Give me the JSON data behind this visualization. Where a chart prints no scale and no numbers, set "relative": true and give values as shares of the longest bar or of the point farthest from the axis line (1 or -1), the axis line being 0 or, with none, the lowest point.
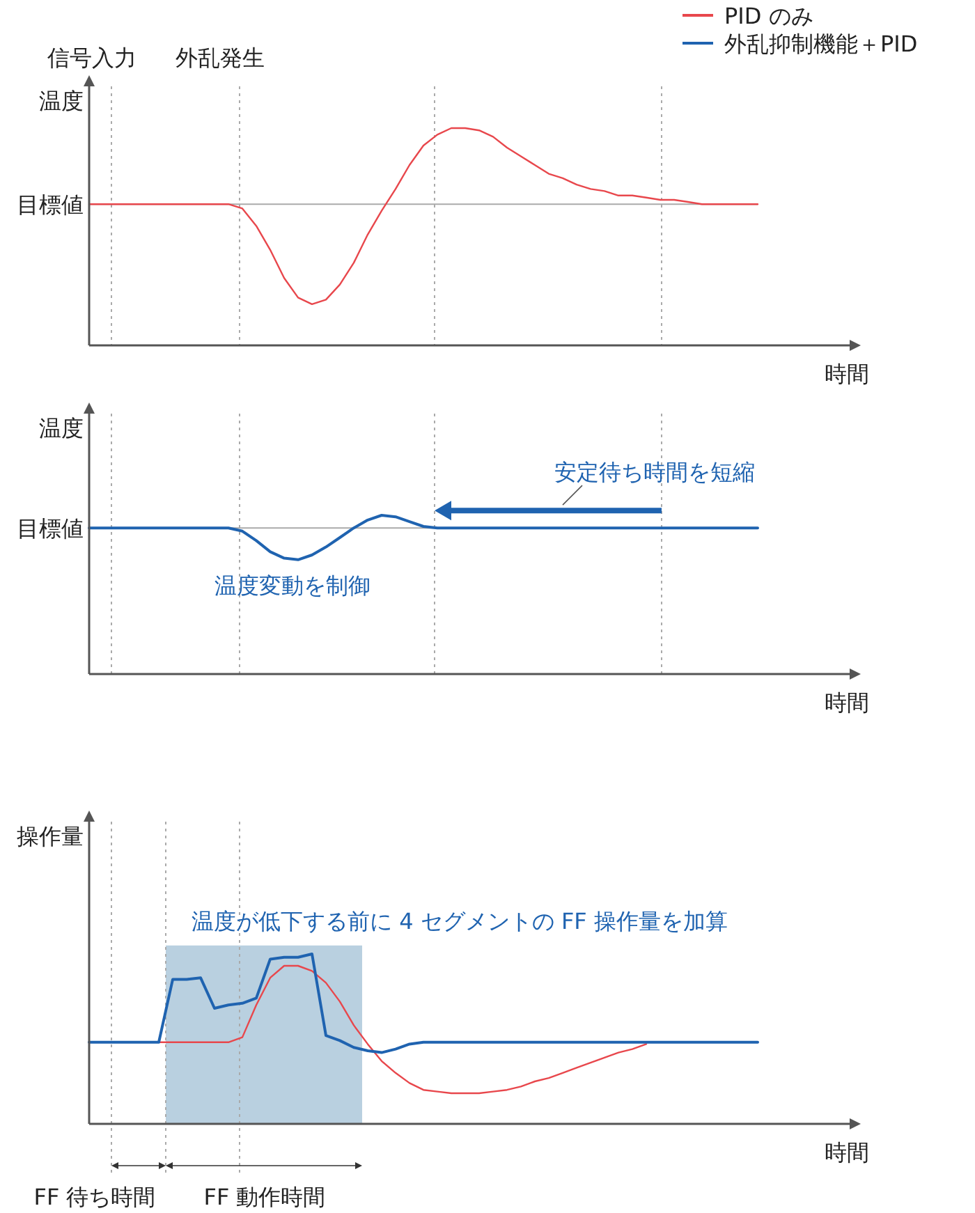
{
  "chart_data": [
    {
      "type": "line",
      "ylabel": "温度",
      "xlabel": "時間",
      "relative": true,
      "categories": [
        null,
        null,
        null,
        null,
        null,
        null,
        null,
        null,
        null,
        null,
        null,
        null,
        null,
        null,
        null,
        null,
        null,
        null,
        null,
        null,
        null,
        null,
        null,
        null,
        null,
        null,
        null,
        null,
        null,
        null,
        null,
        null,
        null,
        null,
        null,
        null,
        null,
        null,
        null,
        null,
        null,
        null,
        null,
        null,
        null,
        null,
        null,
        null,
        null
      ],
      "annotations": [
        "信号入力",
        "外乱発生"
      ],
      "series": [
        {
          "color": "#e8474c",
          "values": [
            0.65,
            0.65,
            0.65,
            0.65,
            0.65,
            0.65,
            0.65,
            0.65,
            0.65,
            0.65,
            0.65,
            0.63,
            0.55,
            0.44,
            0.31,
            0.22,
            0.19,
            0.21,
            0.28,
            0.38,
            0.51,
            0.62,
            0.72,
            0.83,
            0.92,
            0.97,
            1,
            1,
            0.99,
            0.96,
            0.91,
            0.87,
            0.83,
            0.79,
            0.77,
            0.74,
            0.72,
            0.71,
            0.69,
            0.69,
            0.68,
            0.67,
            0.67,
            0.66,
            0.65,
            0.65,
            0.65,
            0.65,
            0.65
          ]
        }
      ],
      "ref_lines": [
        {
          "axis": "y",
          "value": 0.65,
          "label": "目標値",
          "color": "#aaaaaa",
          "line_style": "solid"
        }
      ]
    },
    {
      "type": "line",
      "ylabel": "温度",
      "xlabel": "時間",
      "relative": true,
      "categories": [
        null,
        null,
        null,
        null,
        null,
        null,
        null,
        null,
        null,
        null,
        null,
        null,
        null,
        null,
        null,
        null,
        null,
        null,
        null,
        null,
        null,
        null,
        null,
        null,
        null,
        null,
        null,
        null,
        null,
        null,
        null,
        null,
        null,
        null,
        null,
        null,
        null,
        null,
        null,
        null,
        null,
        null,
        null,
        null,
        null,
        null,
        null,
        null,
        null
      ],
      "annotations": [
        "安定待ち時間を短縮",
        "温度変動を制御"
      ],
      "series": [
        {
          "color": "#1f63b0",
          "values": [
            0.92,
            0.92,
            0.92,
            0.92,
            0.92,
            0.92,
            0.92,
            0.92,
            0.92,
            0.92,
            0.92,
            0.9,
            0.84,
            0.77,
            0.73,
            0.72,
            0.75,
            0.8,
            0.86,
            0.92,
            0.97,
            1,
            0.99,
            0.96,
            0.93,
            0.92,
            0.92,
            0.92,
            0.92,
            0.92,
            0.92,
            0.92,
            0.92,
            0.92,
            0.92,
            0.92,
            0.92,
            0.92,
            0.92,
            0.92,
            0.92,
            0.92,
            0.92,
            0.92,
            0.92,
            0.92,
            0.92,
            0.92,
            0.92
          ]
        }
      ],
      "ref_lines": [
        {
          "axis": "y",
          "value": 0.92,
          "label": "目標値",
          "color": "#aaaaaa",
          "line_style": "solid"
        }
      ]
    },
    {
      "type": "line",
      "ylabel": "操作量",
      "xlabel": "時間",
      "relative": true,
      "legend": "top right",
      "categories": [
        null,
        null,
        null,
        null,
        null,
        null,
        null,
        null,
        null,
        null,
        null,
        null,
        null,
        null,
        null,
        null,
        null,
        null,
        null,
        null,
        null,
        null,
        null,
        null,
        null,
        null,
        null,
        null,
        null,
        null,
        null,
        null,
        null,
        null,
        null,
        null,
        null,
        null,
        null,
        null,
        null,
        null,
        null,
        null,
        null,
        null,
        null,
        null,
        null
      ],
      "annotations": [
        "温度が低下する前に 4 セグメントの FF 操作量を加算",
        "FF 待ち時間",
        "FF 動作時間"
      ],
      "series": [
        {
          "name": "PID のみ",
          "color": "#e8474c",
          "values": [
            null,
            null,
            null,
            null,
            null,
            0.48,
            0.48,
            0.48,
            0.48,
            0.48,
            0.48,
            0.51,
            0.7,
            0.86,
            0.93,
            0.93,
            0.9,
            0.83,
            0.72,
            0.58,
            0.47,
            0.37,
            0.3,
            0.24,
            0.2,
            0.19,
            0.18,
            0.18,
            0.18,
            0.19,
            0.2,
            0.22,
            0.25,
            0.27,
            0.3,
            0.33,
            0.36,
            0.39,
            0.42,
            0.44,
            0.47,
            null,
            null,
            null,
            null,
            null,
            null,
            null,
            null
          ]
        },
        {
          "name": "外乱抑制機能＋PID",
          "color": "#1f63b0",
          "values": [
            0.48,
            0.48,
            0.48,
            0.48,
            0.48,
            0.48,
            0.85,
            0.85,
            0.86,
            0.68,
            0.7,
            0.71,
            0.74,
            0.97,
            0.98,
            0.98,
            1,
            0.52,
            0.49,
            0.45,
            0.43,
            0.42,
            0.44,
            0.47,
            0.48,
            0.48,
            0.48,
            0.48,
            0.48,
            0.48,
            0.48,
            0.48,
            0.48,
            0.48,
            0.48,
            0.48,
            0.48,
            0.48,
            0.48,
            0.48,
            0.48,
            0.48,
            0.48,
            0.48,
            0.48,
            0.48,
            0.48,
            0.48,
            0.48
          ]
        }
      ]
    }
  ]
}
